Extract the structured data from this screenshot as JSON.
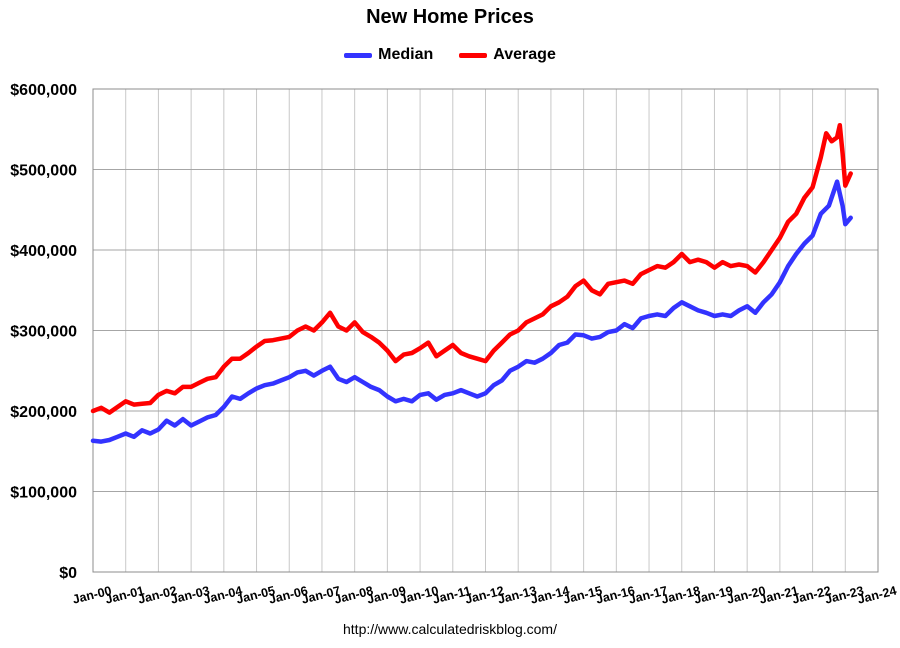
{
  "chart_data": {
    "type": "line",
    "title": "New Home Prices",
    "source": "http://www.calculatedriskblog.com/",
    "xlabel": "",
    "ylabel": "",
    "x_tick_labels": [
      "Jan-00",
      "Jan-01",
      "Jan-02",
      "Jan-03",
      "Jan-04",
      "Jan-05",
      "Jan-06",
      "Jan-07",
      "Jan-08",
      "Jan-09",
      "Jan-10",
      "Jan-11",
      "Jan-12",
      "Jan-13",
      "Jan-14",
      "Jan-15",
      "Jan-16",
      "Jan-17",
      "Jan-18",
      "Jan-19",
      "Jan-20",
      "Jan-21",
      "Jan-22",
      "Jan-23",
      "Jan-24"
    ],
    "y_tick_labels": [
      "$0",
      "$100,000",
      "$200,000",
      "$300,000",
      "$400,000",
      "$500,000",
      "$600,000"
    ],
    "y_ticks": [
      0,
      100000,
      200000,
      300000,
      400000,
      500000,
      600000
    ],
    "ylim": [
      0,
      600000
    ],
    "xlim": [
      "2000-01",
      "2024-01"
    ],
    "grid": true,
    "legend_position": "top",
    "x_unit": "month",
    "series": [
      {
        "name": "Median",
        "color": "#3333ff",
        "points": [
          [
            "2000-01",
            163000
          ],
          [
            "2000-04",
            162000
          ],
          [
            "2000-07",
            164000
          ],
          [
            "2000-10",
            168000
          ],
          [
            "2001-01",
            172000
          ],
          [
            "2001-04",
            168000
          ],
          [
            "2001-07",
            176000
          ],
          [
            "2001-10",
            172000
          ],
          [
            "2002-01",
            177000
          ],
          [
            "2002-04",
            188000
          ],
          [
            "2002-07",
            182000
          ],
          [
            "2002-10",
            190000
          ],
          [
            "2003-01",
            182000
          ],
          [
            "2003-04",
            187000
          ],
          [
            "2003-07",
            192000
          ],
          [
            "2003-10",
            195000
          ],
          [
            "2004-01",
            205000
          ],
          [
            "2004-04",
            218000
          ],
          [
            "2004-07",
            215000
          ],
          [
            "2004-10",
            222000
          ],
          [
            "2005-01",
            228000
          ],
          [
            "2005-04",
            232000
          ],
          [
            "2005-07",
            234000
          ],
          [
            "2005-10",
            238000
          ],
          [
            "2006-01",
            242000
          ],
          [
            "2006-04",
            248000
          ],
          [
            "2006-07",
            250000
          ],
          [
            "2006-10",
            244000
          ],
          [
            "2007-01",
            250000
          ],
          [
            "2007-04",
            255000
          ],
          [
            "2007-07",
            240000
          ],
          [
            "2007-10",
            236000
          ],
          [
            "2008-01",
            242000
          ],
          [
            "2008-04",
            236000
          ],
          [
            "2008-07",
            230000
          ],
          [
            "2008-10",
            226000
          ],
          [
            "2009-01",
            218000
          ],
          [
            "2009-04",
            212000
          ],
          [
            "2009-07",
            215000
          ],
          [
            "2009-10",
            212000
          ],
          [
            "2010-01",
            220000
          ],
          [
            "2010-04",
            222000
          ],
          [
            "2010-07",
            214000
          ],
          [
            "2010-10",
            220000
          ],
          [
            "2011-01",
            222000
          ],
          [
            "2011-04",
            226000
          ],
          [
            "2011-07",
            222000
          ],
          [
            "2011-10",
            218000
          ],
          [
            "2012-01",
            222000
          ],
          [
            "2012-04",
            232000
          ],
          [
            "2012-07",
            238000
          ],
          [
            "2012-10",
            250000
          ],
          [
            "2013-01",
            255000
          ],
          [
            "2013-04",
            262000
          ],
          [
            "2013-07",
            260000
          ],
          [
            "2013-10",
            265000
          ],
          [
            "2014-01",
            272000
          ],
          [
            "2014-04",
            282000
          ],
          [
            "2014-07",
            285000
          ],
          [
            "2014-10",
            295000
          ],
          [
            "2015-01",
            294000
          ],
          [
            "2015-04",
            290000
          ],
          [
            "2015-07",
            292000
          ],
          [
            "2015-10",
            298000
          ],
          [
            "2016-01",
            300000
          ],
          [
            "2016-04",
            308000
          ],
          [
            "2016-07",
            303000
          ],
          [
            "2016-10",
            315000
          ],
          [
            "2017-01",
            318000
          ],
          [
            "2017-04",
            320000
          ],
          [
            "2017-07",
            318000
          ],
          [
            "2017-10",
            328000
          ],
          [
            "2018-01",
            335000
          ],
          [
            "2018-04",
            330000
          ],
          [
            "2018-07",
            325000
          ],
          [
            "2018-10",
            322000
          ],
          [
            "2019-01",
            318000
          ],
          [
            "2019-04",
            320000
          ],
          [
            "2019-07",
            318000
          ],
          [
            "2019-10",
            325000
          ],
          [
            "2020-01",
            330000
          ],
          [
            "2020-04",
            322000
          ],
          [
            "2020-07",
            335000
          ],
          [
            "2020-10",
            345000
          ],
          [
            "2021-01",
            360000
          ],
          [
            "2021-04",
            380000
          ],
          [
            "2021-07",
            395000
          ],
          [
            "2021-10",
            408000
          ],
          [
            "2022-01",
            418000
          ],
          [
            "2022-04",
            445000
          ],
          [
            "2022-07",
            455000
          ],
          [
            "2022-10",
            485000
          ],
          [
            "2022-11",
            470000
          ],
          [
            "2022-12",
            455000
          ],
          [
            "2023-01",
            432000
          ],
          [
            "2023-03",
            440000
          ]
        ]
      },
      {
        "name": "Average",
        "color": "#ff0000",
        "points": [
          [
            "2000-01",
            200000
          ],
          [
            "2000-04",
            204000
          ],
          [
            "2000-07",
            198000
          ],
          [
            "2000-10",
            205000
          ],
          [
            "2001-01",
            212000
          ],
          [
            "2001-04",
            208000
          ],
          [
            "2001-07",
            209000
          ],
          [
            "2001-10",
            210000
          ],
          [
            "2002-01",
            220000
          ],
          [
            "2002-04",
            225000
          ],
          [
            "2002-07",
            222000
          ],
          [
            "2002-10",
            230000
          ],
          [
            "2003-01",
            230000
          ],
          [
            "2003-04",
            235000
          ],
          [
            "2003-07",
            240000
          ],
          [
            "2003-10",
            242000
          ],
          [
            "2004-01",
            255000
          ],
          [
            "2004-04",
            265000
          ],
          [
            "2004-07",
            265000
          ],
          [
            "2004-10",
            272000
          ],
          [
            "2005-01",
            280000
          ],
          [
            "2005-04",
            287000
          ],
          [
            "2005-07",
            288000
          ],
          [
            "2005-10",
            290000
          ],
          [
            "2006-01",
            292000
          ],
          [
            "2006-04",
            300000
          ],
          [
            "2006-07",
            305000
          ],
          [
            "2006-10",
            300000
          ],
          [
            "2007-01",
            310000
          ],
          [
            "2007-04",
            322000
          ],
          [
            "2007-07",
            305000
          ],
          [
            "2007-10",
            300000
          ],
          [
            "2008-01",
            310000
          ],
          [
            "2008-04",
            298000
          ],
          [
            "2008-07",
            292000
          ],
          [
            "2008-10",
            285000
          ],
          [
            "2009-01",
            275000
          ],
          [
            "2009-04",
            262000
          ],
          [
            "2009-07",
            270000
          ],
          [
            "2009-10",
            272000
          ],
          [
            "2010-01",
            278000
          ],
          [
            "2010-04",
            285000
          ],
          [
            "2010-07",
            268000
          ],
          [
            "2010-10",
            275000
          ],
          [
            "2011-01",
            282000
          ],
          [
            "2011-04",
            272000
          ],
          [
            "2011-07",
            268000
          ],
          [
            "2011-10",
            265000
          ],
          [
            "2012-01",
            262000
          ],
          [
            "2012-04",
            275000
          ],
          [
            "2012-07",
            285000
          ],
          [
            "2012-10",
            295000
          ],
          [
            "2013-01",
            300000
          ],
          [
            "2013-04",
            310000
          ],
          [
            "2013-07",
            315000
          ],
          [
            "2013-10",
            320000
          ],
          [
            "2014-01",
            330000
          ],
          [
            "2014-04",
            335000
          ],
          [
            "2014-07",
            342000
          ],
          [
            "2014-10",
            355000
          ],
          [
            "2015-01",
            362000
          ],
          [
            "2015-04",
            350000
          ],
          [
            "2015-07",
            345000
          ],
          [
            "2015-10",
            358000
          ],
          [
            "2016-01",
            360000
          ],
          [
            "2016-04",
            362000
          ],
          [
            "2016-07",
            358000
          ],
          [
            "2016-10",
            370000
          ],
          [
            "2017-01",
            375000
          ],
          [
            "2017-04",
            380000
          ],
          [
            "2017-07",
            378000
          ],
          [
            "2017-10",
            385000
          ],
          [
            "2018-01",
            395000
          ],
          [
            "2018-04",
            385000
          ],
          [
            "2018-07",
            388000
          ],
          [
            "2018-10",
            385000
          ],
          [
            "2019-01",
            378000
          ],
          [
            "2019-04",
            385000
          ],
          [
            "2019-07",
            380000
          ],
          [
            "2019-10",
            382000
          ],
          [
            "2020-01",
            380000
          ],
          [
            "2020-04",
            372000
          ],
          [
            "2020-07",
            385000
          ],
          [
            "2020-10",
            400000
          ],
          [
            "2021-01",
            415000
          ],
          [
            "2021-04",
            435000
          ],
          [
            "2021-07",
            445000
          ],
          [
            "2021-10",
            465000
          ],
          [
            "2022-01",
            478000
          ],
          [
            "2022-04",
            515000
          ],
          [
            "2022-06",
            545000
          ],
          [
            "2022-08",
            535000
          ],
          [
            "2022-10",
            540000
          ],
          [
            "2022-11",
            555000
          ],
          [
            "2022-12",
            520000
          ],
          [
            "2023-01",
            480000
          ],
          [
            "2023-03",
            495000
          ]
        ]
      }
    ]
  }
}
